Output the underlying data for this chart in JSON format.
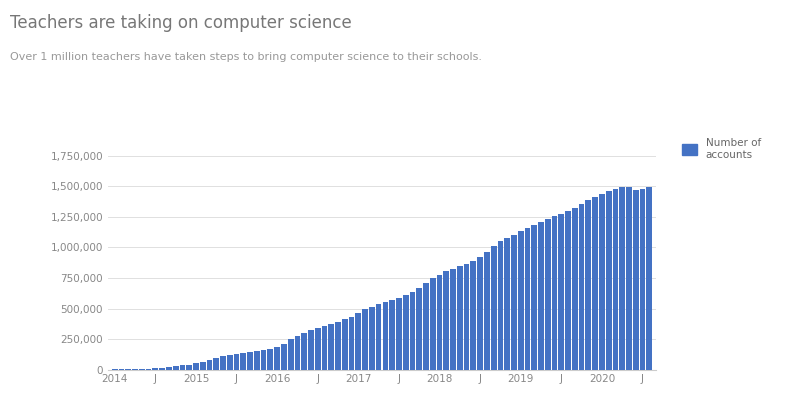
{
  "title": "Teachers are taking on computer science",
  "subtitle": "Over 1 million teachers have taken steps to bring computer science to their schools.",
  "bar_color": "#4472C4",
  "legend_label": "Number of\naccounts",
  "background_color": "#ffffff",
  "ylim": [
    0,
    1875000
  ],
  "yticks": [
    0,
    250000,
    500000,
    750000,
    1000000,
    1250000,
    1500000,
    1750000
  ],
  "tick_pos": [
    0,
    6,
    12,
    18,
    24,
    30,
    36,
    42,
    48,
    54,
    60,
    66,
    72,
    78
  ],
  "tick_lbl": [
    "2014",
    "J",
    "2015",
    "J",
    "2016",
    "J",
    "2017",
    "J",
    "2018",
    "J",
    "2019",
    "J",
    "2020",
    "J"
  ],
  "values": [
    2000,
    3000,
    4000,
    5500,
    7000,
    9000,
    12000,
    16000,
    22000,
    28000,
    35000,
    42000,
    52000,
    65000,
    80000,
    95000,
    108000,
    118000,
    127000,
    135000,
    142000,
    150000,
    158000,
    168000,
    185000,
    210000,
    248000,
    278000,
    302000,
    322000,
    340000,
    358000,
    375000,
    393000,
    412000,
    432000,
    460000,
    495000,
    515000,
    535000,
    555000,
    572000,
    590000,
    612000,
    638000,
    668000,
    705000,
    750000,
    778000,
    803000,
    825000,
    848000,
    868000,
    890000,
    920000,
    960000,
    1010000,
    1050000,
    1080000,
    1105000,
    1130000,
    1155000,
    1180000,
    1205000,
    1230000,
    1255000,
    1275000,
    1300000,
    1325000,
    1355000,
    1385000,
    1415000,
    1440000,
    1460000,
    1480000,
    1490000,
    1495000,
    1470000,
    1480000,
    1490000
  ]
}
